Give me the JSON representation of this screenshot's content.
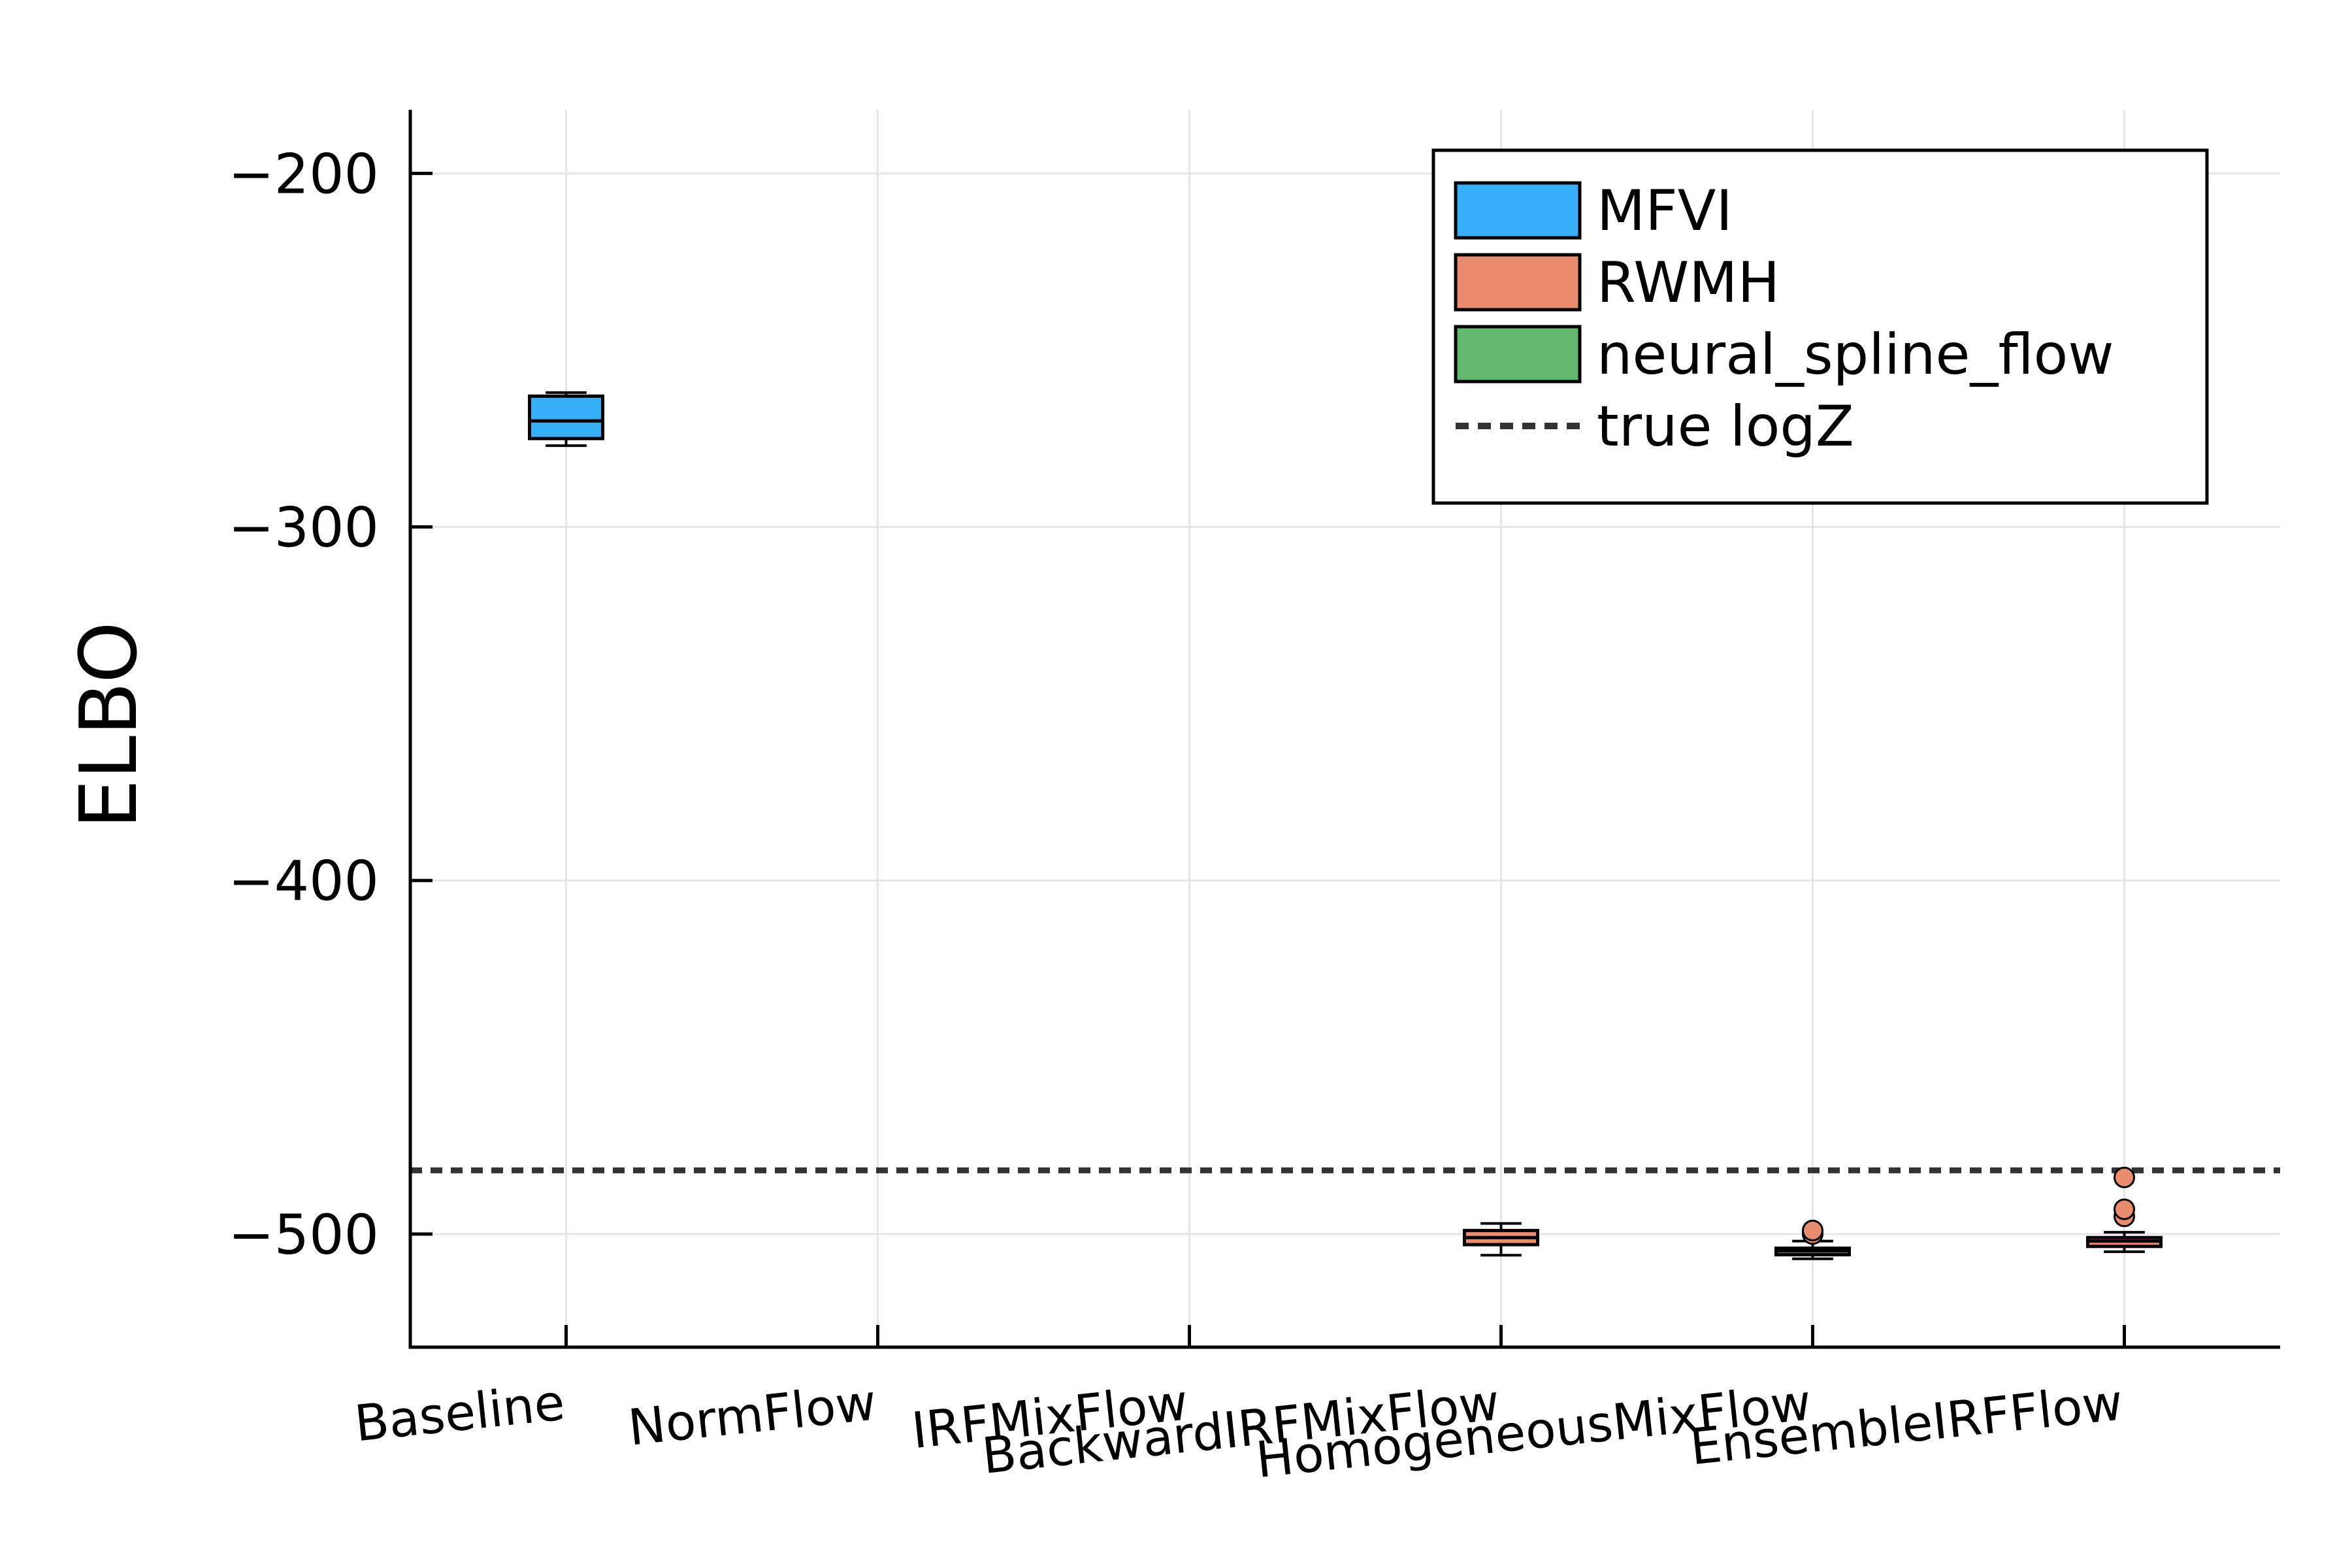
{
  "chart_data": {
    "type": "boxplot",
    "title": "",
    "xlabel": "",
    "ylabel": "ELBO",
    "ylim": [
      -532,
      -182
    ],
    "yticks": [
      -200,
      -300,
      -400,
      -500
    ],
    "ytick_labels": [
      "−200",
      "−300",
      "−400",
      "−500"
    ],
    "categories": [
      "Baseline",
      "NormFlow",
      "IRFMixFlow",
      "BackwardIRFMixFlow",
      "HomogeneousMixFlow",
      "EnsembleIRFFlow"
    ],
    "grid": true,
    "legend_position": "top-right",
    "series": [
      {
        "name": "MFVI",
        "color": "#36aef8",
        "boxes": [
          {
            "category": "Baseline",
            "whisker_low": -277,
            "q1": -275,
            "median": -270,
            "q3": -263,
            "whisker_high": -262,
            "outliers": []
          }
        ]
      },
      {
        "name": "RWMH",
        "color": "#e98b6d",
        "boxes": [
          {
            "category": "BackwardIRFMixFlow",
            "whisker_low": -506,
            "q1": -503,
            "median": -501,
            "q3": -499,
            "whisker_high": -497,
            "outliers": []
          },
          {
            "category": "HomogeneousMixFlow",
            "whisker_low": -507,
            "q1": -505.5,
            "median": -504.8,
            "q3": -504,
            "whisker_high": -502,
            "outliers": [
              -500,
              -499
            ]
          },
          {
            "category": "EnsembleIRFFlow",
            "whisker_low": -505,
            "q1": -503.5,
            "median": -502,
            "q3": -501,
            "whisker_high": -499.5,
            "outliers": [
              -495,
              -493,
              -484
            ]
          }
        ]
      }
    ],
    "legend": [
      {
        "label": "MFVI",
        "kind": "box",
        "color": "#36aef8"
      },
      {
        "label": "RWMH",
        "kind": "box",
        "color": "#e98b6d"
      },
      {
        "label": "neural_spline_flow",
        "kind": "box",
        "color": "#62b86e"
      },
      {
        "label": "true logZ",
        "kind": "dashed-line",
        "color": "#333333"
      }
    ],
    "reference_lines": [
      {
        "name": "true logZ",
        "y": -482,
        "style": "dashed",
        "color": "#333333"
      }
    ]
  }
}
